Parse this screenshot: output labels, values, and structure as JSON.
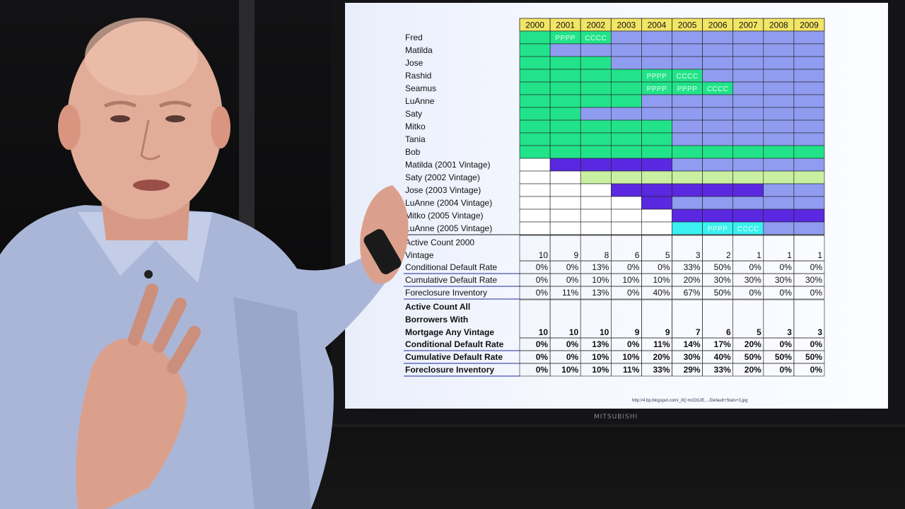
{
  "source_url": "http://4.bp.blogspot.com/_iIQ mcDGJE..../Default+Stats+3.jpg",
  "brand": "MITSUBISHI",
  "years": [
    "2000",
    "2001",
    "2002",
    "2003",
    "2004",
    "2005",
    "2006",
    "2007",
    "2008",
    "2009"
  ],
  "borrowers": [
    {
      "name": "Fred",
      "cells": [
        "G",
        "GP",
        "GC",
        "B",
        "B",
        "B",
        "B",
        "B",
        "B",
        "B"
      ]
    },
    {
      "name": "Matilda",
      "cells": [
        "G",
        "B",
        "B",
        "B",
        "B",
        "B",
        "B",
        "B",
        "B",
        "B"
      ]
    },
    {
      "name": "Jose",
      "cells": [
        "G",
        "G",
        "G",
        "B",
        "B",
        "B",
        "B",
        "B",
        "B",
        "B"
      ]
    },
    {
      "name": "Rashid",
      "cells": [
        "G",
        "G",
        "G",
        "G",
        "GP",
        "GC",
        "B",
        "B",
        "B",
        "B"
      ]
    },
    {
      "name": "Seamus",
      "cells": [
        "G",
        "G",
        "G",
        "G",
        "GP",
        "GP",
        "GC",
        "B",
        "B",
        "B"
      ]
    },
    {
      "name": "LuAnne",
      "cells": [
        "G",
        "G",
        "G",
        "G",
        "B",
        "B",
        "B",
        "B",
        "B",
        "B"
      ]
    },
    {
      "name": "Saty",
      "cells": [
        "G",
        "G",
        "B",
        "B",
        "B",
        "B",
        "B",
        "B",
        "B",
        "B"
      ]
    },
    {
      "name": "Mitko",
      "cells": [
        "G",
        "G",
        "G",
        "G",
        "G",
        "B",
        "B",
        "B",
        "B",
        "B"
      ]
    },
    {
      "name": "Tania",
      "cells": [
        "G",
        "G",
        "G",
        "G",
        "G",
        "B",
        "B",
        "B",
        "B",
        "B"
      ]
    },
    {
      "name": "Bob",
      "cells": [
        "G",
        "G",
        "G",
        "G",
        "G",
        "G",
        "G",
        "G",
        "G",
        "G"
      ]
    },
    {
      "name": "Matilda (2001 Vintage)",
      "cells": [
        "W",
        "D",
        "D",
        "D",
        "D",
        "B",
        "B",
        "B",
        "B",
        "B"
      ]
    },
    {
      "name": "Saty (2002 Vintage)",
      "cells": [
        "W",
        "W",
        "Y",
        "Y",
        "Y",
        "Y",
        "Y",
        "Y",
        "Y",
        "Y"
      ]
    },
    {
      "name": "Jose (2003 Vintage)",
      "cells": [
        "W",
        "W",
        "W",
        "D",
        "D",
        "D",
        "D",
        "D",
        "B",
        "B"
      ]
    },
    {
      "name": "LuAnne (2004 Vintage)",
      "cells": [
        "W",
        "W",
        "W",
        "W",
        "D",
        "B",
        "B",
        "B",
        "B",
        "B"
      ]
    },
    {
      "name": "Mitko (2005 Vintage)",
      "cells": [
        "W",
        "W",
        "W",
        "W",
        "W",
        "D",
        "D",
        "D",
        "D",
        "D"
      ]
    },
    {
      "name": "LuAnne (2005 Vintage)",
      "cells": [
        "W",
        "W",
        "W",
        "W",
        "W",
        "C",
        "CP",
        "CC",
        "B",
        "B"
      ]
    }
  ],
  "cell_marks": {
    "P": "PPPP",
    "C": "CCCC"
  },
  "stats_2000": {
    "header_lines": [
      "Active Count 2000",
      "Vintage"
    ],
    "active": [
      "10",
      "9",
      "8",
      "6",
      "5",
      "3",
      "2",
      "1",
      "1",
      "1"
    ],
    "rows": [
      {
        "label": "Conditional Default Rate",
        "values": [
          "0%",
          "0%",
          "13%",
          "0%",
          "0%",
          "33%",
          "50%",
          "0%",
          "0%",
          "0%"
        ]
      },
      {
        "label": "Cumulative Default Rate",
        "values": [
          "0%",
          "0%",
          "10%",
          "10%",
          "10%",
          "20%",
          "30%",
          "30%",
          "30%",
          "30%"
        ]
      },
      {
        "label": "Foreclosure Inventory",
        "values": [
          "0%",
          "11%",
          "13%",
          "0%",
          "40%",
          "67%",
          "50%",
          "0%",
          "0%",
          "0%"
        ]
      }
    ]
  },
  "stats_all": {
    "header_lines": [
      "Active Count All",
      "Borrowers With",
      "Mortgage Any Vintage"
    ],
    "active": [
      "10",
      "10",
      "10",
      "9",
      "9",
      "7",
      "6",
      "5",
      "3",
      "3"
    ],
    "rows": [
      {
        "label": "Conditional Default Rate",
        "values": [
          "0%",
          "0%",
          "13%",
          "0%",
          "11%",
          "14%",
          "17%",
          "20%",
          "0%",
          "0%"
        ]
      },
      {
        "label": "Cumulative Default Rate",
        "values": [
          "0%",
          "0%",
          "10%",
          "10%",
          "20%",
          "30%",
          "40%",
          "50%",
          "50%",
          "50%"
        ]
      },
      {
        "label": "Foreclosure Inventory",
        "values": [
          "0%",
          "10%",
          "10%",
          "11%",
          "33%",
          "29%",
          "33%",
          "20%",
          "0%",
          "0%"
        ]
      }
    ]
  },
  "colors": {
    "G": "#22e38a",
    "B": "#8f9cf0",
    "D": "#5a28e0",
    "Y": "#c8f0a0",
    "C": "#3af0f0",
    "W": "#ffffff",
    "header": "#f2e566",
    "text": "#111111",
    "grid": "#202020"
  }
}
